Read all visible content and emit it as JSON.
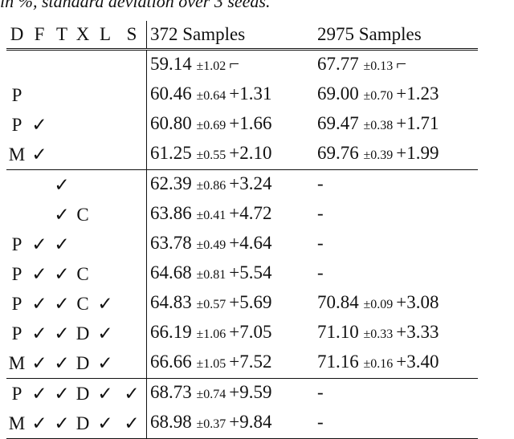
{
  "caption": "in %, standard deviation over 3 seeds.",
  "headers": [
    "D",
    "F",
    "T",
    "X",
    "L",
    "S",
    "372 Samples",
    "2975 Samples"
  ],
  "rows": [
    {
      "D": "",
      "F": "",
      "T": "",
      "X": "",
      "L": "",
      "S": "",
      "m1": "59.14",
      "s1": "±1.02",
      "d1": "⌐",
      "m2": "67.77",
      "s2": "±0.13",
      "d2": "⌐"
    },
    {
      "D": "P",
      "F": "",
      "T": "",
      "X": "",
      "L": "",
      "S": "",
      "m1": "60.46",
      "s1": "±0.64",
      "d1": "+1.31",
      "m2": "69.00",
      "s2": "±0.70",
      "d2": "+1.23"
    },
    {
      "D": "P",
      "F": "✓",
      "T": "",
      "X": "",
      "L": "",
      "S": "",
      "m1": "60.80",
      "s1": "±0.69",
      "d1": "+1.66",
      "m2": "69.47",
      "s2": "±0.38",
      "d2": "+1.71"
    },
    {
      "D": "M",
      "F": "✓",
      "T": "",
      "X": "",
      "L": "",
      "S": "",
      "m1": "61.25",
      "s1": "±0.55",
      "d1": "+2.10",
      "m2": "69.76",
      "s2": "±0.39",
      "d2": "+1.99"
    },
    {
      "D": "",
      "F": "",
      "T": "✓",
      "X": "",
      "L": "",
      "S": "",
      "m1": "62.39",
      "s1": "±0.86",
      "d1": "+3.24",
      "m2": "-",
      "s2": "",
      "d2": ""
    },
    {
      "D": "",
      "F": "",
      "T": "✓",
      "X": "C",
      "L": "",
      "S": "",
      "m1": "63.86",
      "s1": "±0.41",
      "d1": "+4.72",
      "m2": "-",
      "s2": "",
      "d2": ""
    },
    {
      "D": "P",
      "F": "✓",
      "T": "✓",
      "X": "",
      "L": "",
      "S": "",
      "m1": "63.78",
      "s1": "±0.49",
      "d1": "+4.64",
      "m2": "-",
      "s2": "",
      "d2": ""
    },
    {
      "D": "P",
      "F": "✓",
      "T": "✓",
      "X": "C",
      "L": "",
      "S": "",
      "m1": "64.68",
      "s1": "±0.81",
      "d1": "+5.54",
      "m2": "-",
      "s2": "",
      "d2": ""
    },
    {
      "D": "P",
      "F": "✓",
      "T": "✓",
      "X": "C",
      "L": "✓",
      "S": "",
      "m1": "64.83",
      "s1": "±0.57",
      "d1": "+5.69",
      "m2": "70.84",
      "s2": "±0.09",
      "d2": "+3.08"
    },
    {
      "D": "P",
      "F": "✓",
      "T": "✓",
      "X": "D",
      "L": "✓",
      "S": "",
      "m1": "66.19",
      "s1": "±1.06",
      "d1": "+7.05",
      "m2": "71.10",
      "s2": "±0.33",
      "d2": "+3.33"
    },
    {
      "D": "M",
      "F": "✓",
      "T": "✓",
      "X": "D",
      "L": "✓",
      "S": "",
      "m1": "66.66",
      "s1": "±1.05",
      "d1": "+7.52",
      "m2": "71.16",
      "s2": "±0.16",
      "d2": "+3.40"
    },
    {
      "D": "P",
      "F": "✓",
      "T": "✓",
      "X": "D",
      "L": "✓",
      "S": "✓",
      "m1": "68.73",
      "s1": "±0.74",
      "d1": "+9.59",
      "m2": "-",
      "s2": "",
      "d2": ""
    },
    {
      "D": "M",
      "F": "✓",
      "T": "✓",
      "X": "D",
      "L": "✓",
      "S": "✓",
      "m1": "68.98",
      "s1": "±0.37",
      "d1": "+9.84",
      "m2": "-",
      "s2": "",
      "d2": ""
    }
  ],
  "rule_before_rows": [
    4,
    11
  ],
  "double_rule_before_rows": [
    0
  ]
}
